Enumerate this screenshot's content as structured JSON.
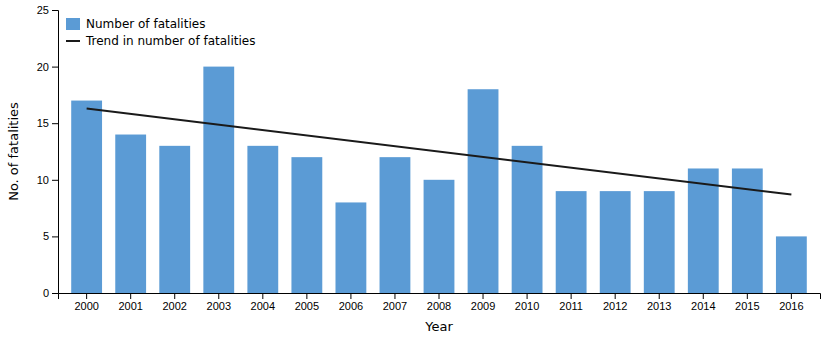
{
  "chart_data": {
    "type": "bar",
    "categories": [
      "2000",
      "2001",
      "2002",
      "2003",
      "2004",
      "2005",
      "2006",
      "2007",
      "2008",
      "2009",
      "2010",
      "2011",
      "2012",
      "2013",
      "2014",
      "2015",
      "2016"
    ],
    "series": [
      {
        "name": "Number of fatalities",
        "type": "bar",
        "color": "#5b9bd5",
        "values": [
          17,
          14,
          13,
          20,
          13,
          12,
          8,
          12,
          10,
          18,
          13,
          9,
          9,
          9,
          11,
          11,
          5
        ]
      },
      {
        "name": "Trend in number of fatalities",
        "type": "line",
        "color": "#1a1a1a",
        "x": [
          "2000",
          "2016"
        ],
        "values": [
          16.3,
          8.7
        ]
      }
    ],
    "xlabel": "Year",
    "ylabel": "No. of fatalities",
    "ylim": [
      0,
      25
    ],
    "yticks": [
      0,
      5,
      10,
      15,
      20,
      25
    ],
    "grid": false,
    "legend": "upper left"
  }
}
